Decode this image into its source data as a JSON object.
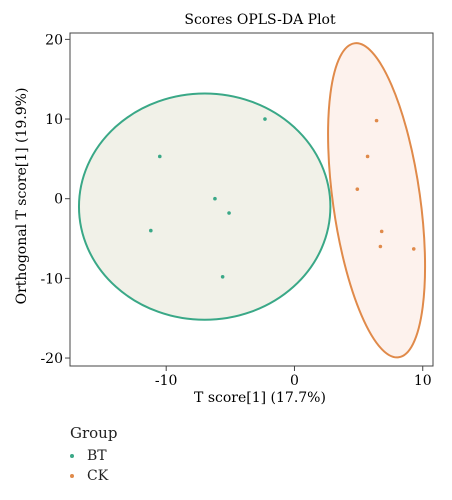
{
  "chart_data": {
    "type": "scatter",
    "title": "Scores OPLS-DA Plot",
    "xlabel": "T score[1] (17.7%)",
    "ylabel": "Orthogonal T score[1] (19.9%)",
    "xlim": [
      -17.5,
      10.8
    ],
    "ylim": [
      -21,
      20.8
    ],
    "xticks": [
      -10,
      0,
      10
    ],
    "xtick_labels": [
      "-10",
      "0",
      "10"
    ],
    "yticks": [
      20,
      10,
      0,
      -10,
      -20
    ],
    "ytick_labels": [
      "20",
      "10",
      "0",
      "-10",
      "-20"
    ],
    "grid": false,
    "legend_position": "bottom-left",
    "legend_title": "Group",
    "series": [
      {
        "name": "BT",
        "color": "#3aa887",
        "fill": "#eeeee4",
        "x": [
          -2.3,
          -10.5,
          -6.2,
          -5.1,
          -11.2,
          -5.6
        ],
        "y": [
          10.0,
          5.3,
          0.0,
          -1.8,
          -4.0,
          -9.8
        ],
        "ellipse": {
          "cx": -7.0,
          "cy": -1.0,
          "rx_axis": 9.8,
          "ry_axis": 14.2,
          "angle_deg": 0
        }
      },
      {
        "name": "CK",
        "color": "#e08a4a",
        "fill": "#fdf0ea",
        "x": [
          6.4,
          5.7,
          4.9,
          6.8,
          6.7,
          9.3
        ],
        "y": [
          9.8,
          5.3,
          1.2,
          -4.1,
          -6.0,
          -6.3
        ],
        "ellipse": {
          "cx": 6.4,
          "cy": -0.2,
          "rx_axis": 3.4,
          "ry_axis": 19.9,
          "angle_deg": -8
        }
      }
    ]
  }
}
